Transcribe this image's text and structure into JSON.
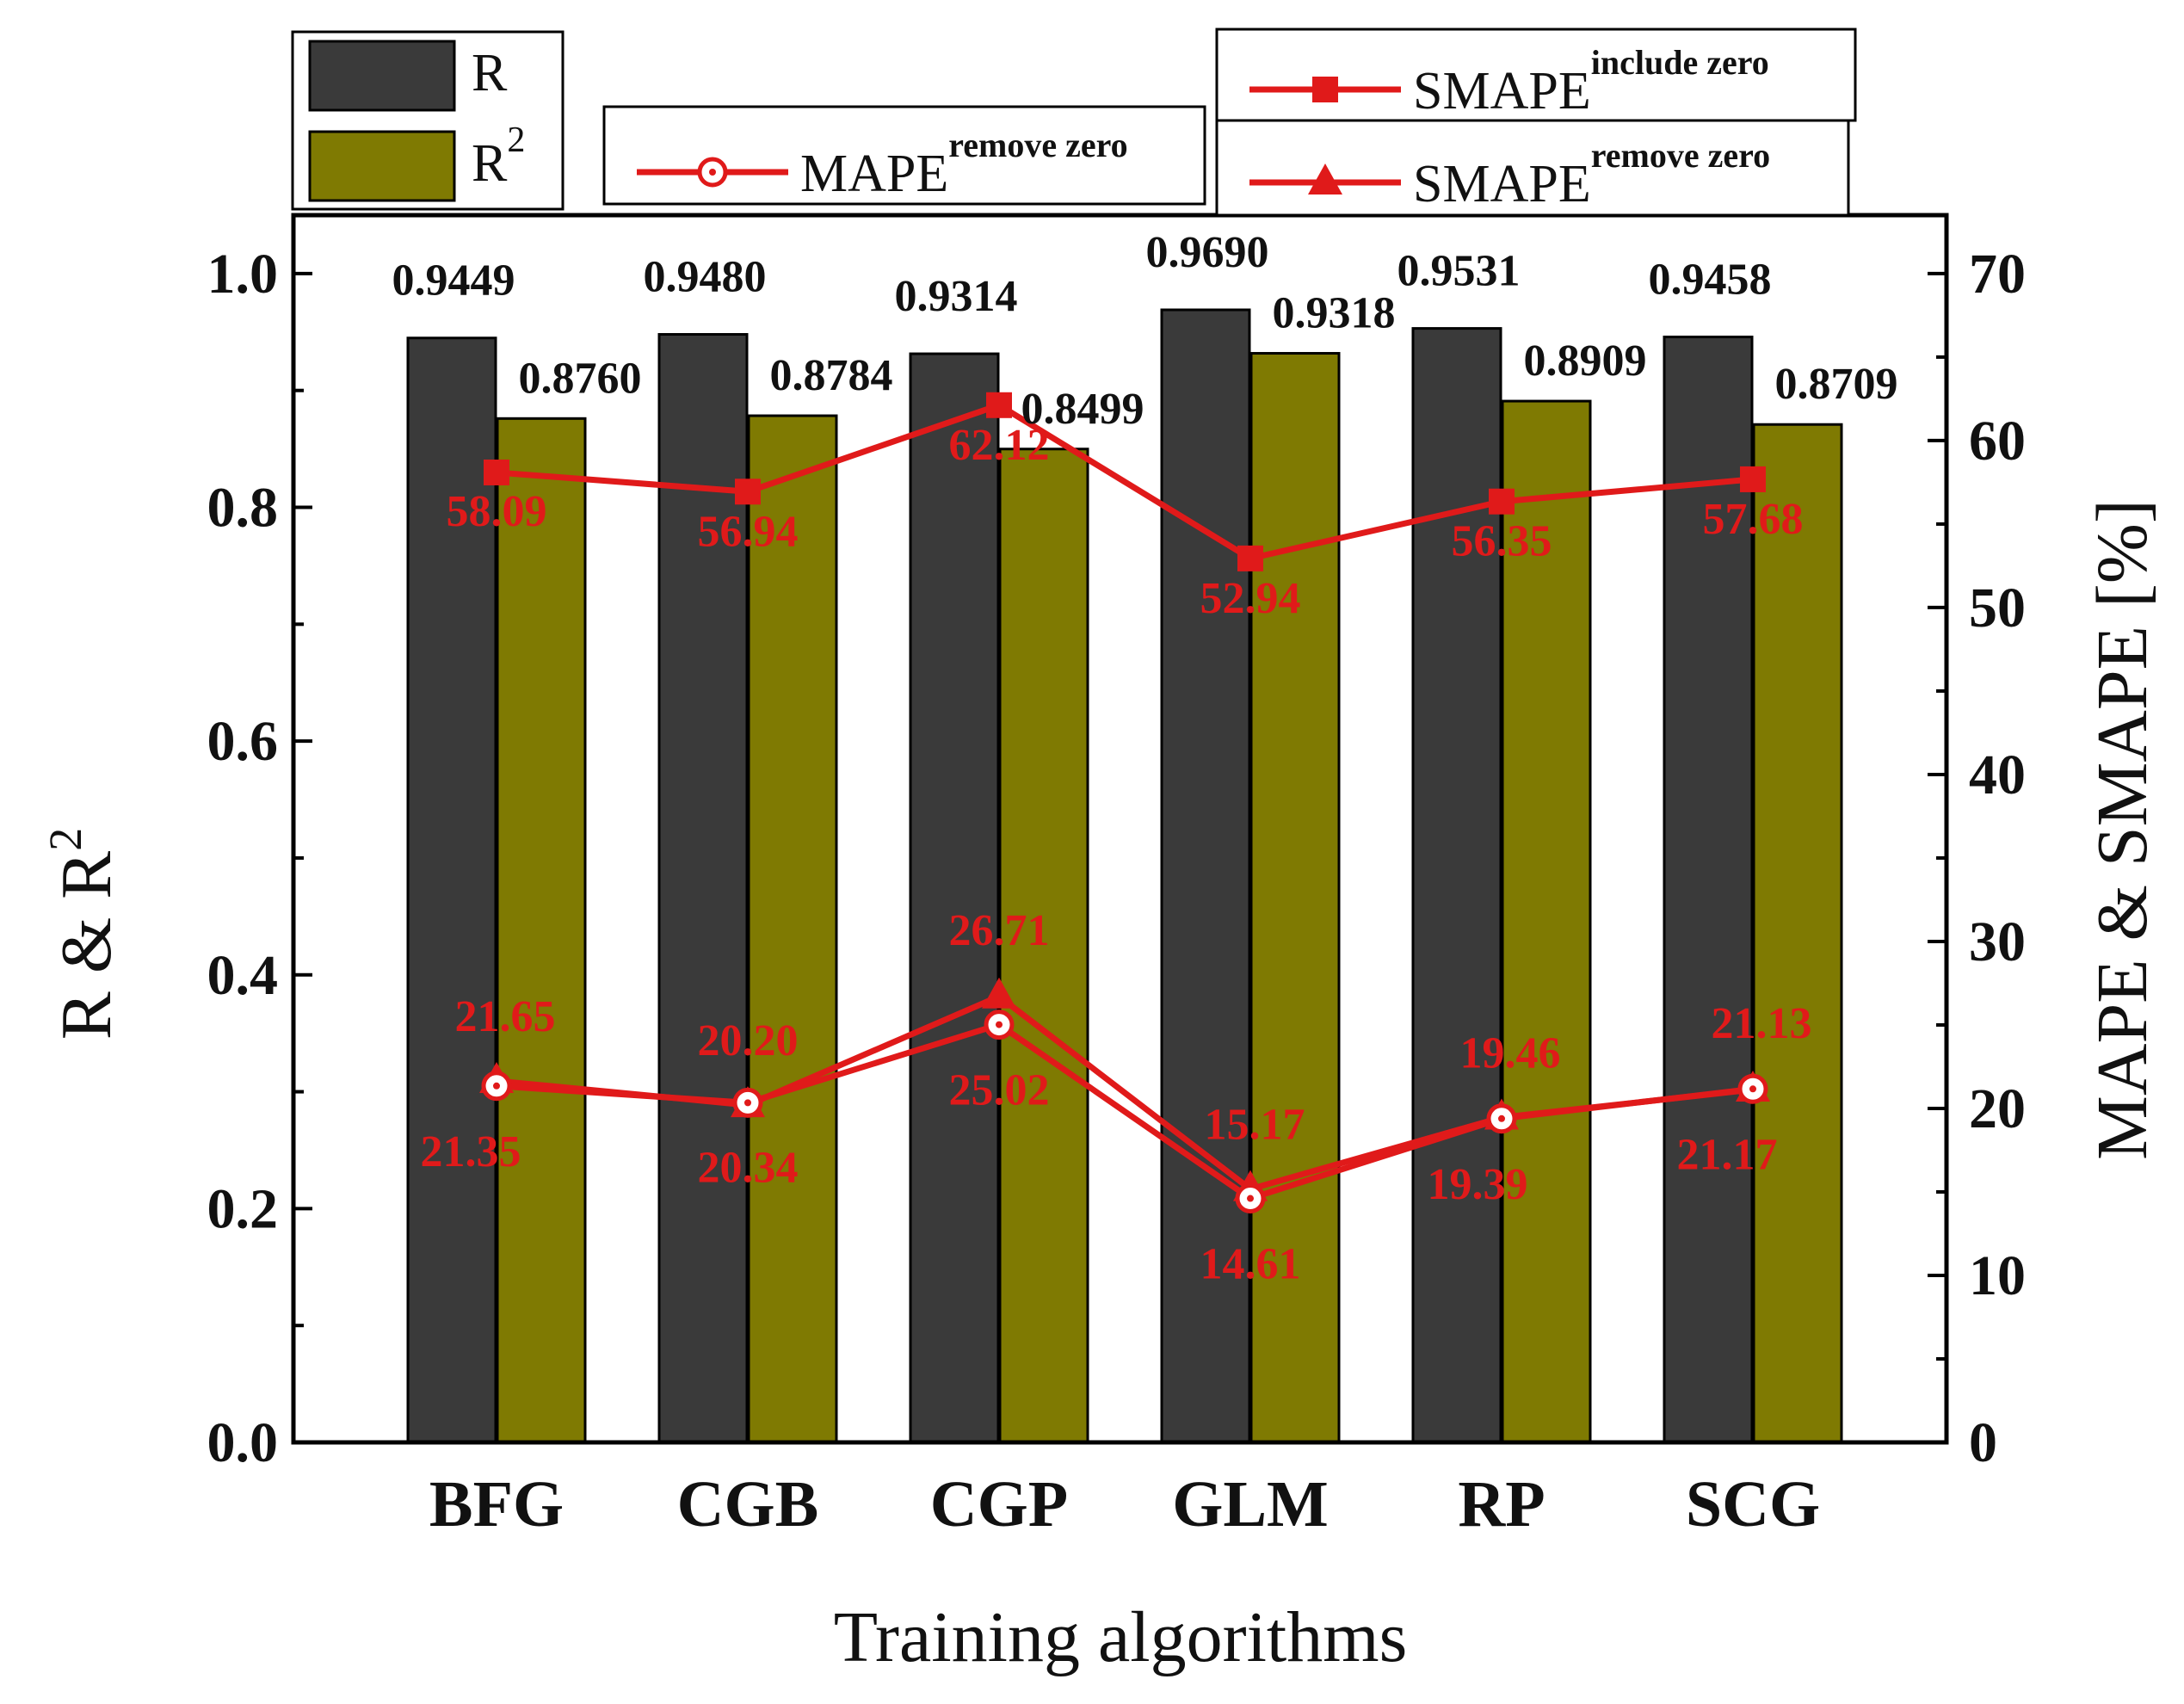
{
  "chart_data": {
    "type": "bar",
    "xlabel": "Training algorithms",
    "ylabel_left": "R & R²",
    "ylabel_left_base": "R & R",
    "ylabel_left_sup": "2",
    "ylabel_right": "MAPE & SMAPE [%]",
    "categories": [
      "BFG",
      "CGB",
      "CGP",
      "GLM",
      "RP",
      "SCG"
    ],
    "ylim_left": [
      0,
      1.05
    ],
    "yticks_left": [
      "0.0",
      "0.2",
      "0.4",
      "0.6",
      "0.8",
      "1.0"
    ],
    "ylim_right": [
      0,
      73.5
    ],
    "yticks_right": [
      "0",
      "10",
      "20",
      "30",
      "40",
      "50",
      "60",
      "70"
    ],
    "bar_series": [
      {
        "name": "R",
        "label": "R",
        "sup": "",
        "color": "#3a3a3a",
        "values": [
          0.9449,
          0.948,
          0.9314,
          0.969,
          0.9531,
          0.9458
        ],
        "labels": [
          "0.9449",
          "0.9480",
          "0.9314",
          "0.9690",
          "0.9531",
          "0.9458"
        ]
      },
      {
        "name": "R²",
        "label": "R",
        "sup": "2",
        "color": "#7f7a02",
        "values": [
          0.876,
          0.8784,
          0.8499,
          0.9318,
          0.8909,
          0.8709
        ],
        "labels": [
          "0.8760",
          "0.8784",
          "0.8499",
          "0.9318",
          "0.8909",
          "0.8709"
        ]
      }
    ],
    "line_series": [
      {
        "name": "SMAPE include zero",
        "label": "SMAPE",
        "sup": "include zero",
        "marker": "square",
        "color": "#e01a1a",
        "values": [
          58.09,
          56.94,
          62.12,
          52.94,
          56.35,
          57.68
        ],
        "labels": [
          "58.09",
          "56.94",
          "62.12",
          "52.94",
          "56.35",
          "57.68"
        ]
      },
      {
        "name": "SMAPE remove zero",
        "label": "SMAPE",
        "sup": "remove zero",
        "marker": "triangle",
        "color": "#e01a1a",
        "values": [
          21.65,
          20.2,
          26.71,
          15.17,
          19.46,
          21.13
        ],
        "labels": [
          "21.65",
          "20.20",
          "26.71",
          "15.17",
          "19.46",
          "21.13"
        ]
      },
      {
        "name": "MAPE remove zero",
        "label": "MAPE",
        "sup": "remove zero",
        "marker": "open-circle",
        "color": "#e01a1a",
        "values": [
          21.35,
          20.34,
          25.02,
          14.61,
          19.39,
          21.17
        ],
        "labels": [
          "21.35",
          "20.34",
          "25.02",
          "14.61",
          "19.39",
          "21.17"
        ]
      }
    ],
    "grid": false,
    "legend": "top"
  }
}
